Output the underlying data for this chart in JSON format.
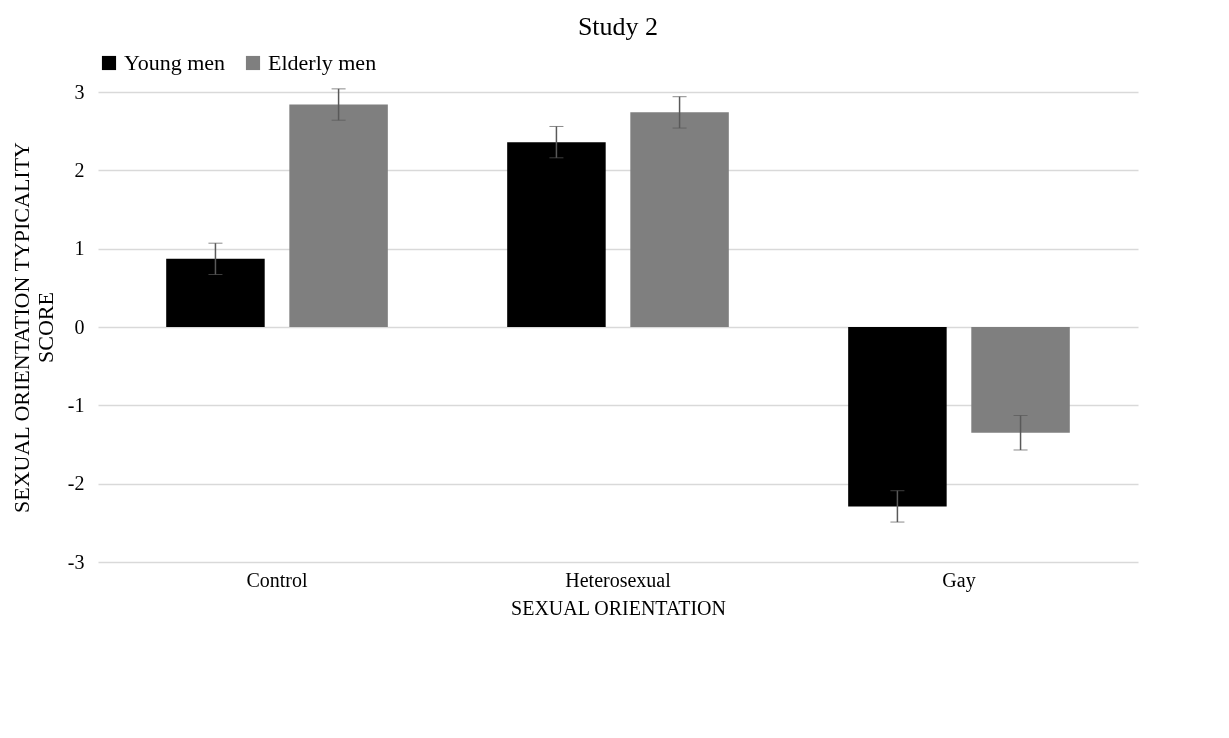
{
  "chart_data": {
    "type": "bar",
    "title": "Study 2",
    "xlabel": "SEXUAL ORIENTATION",
    "ylabel": "SEXUAL ORIENTATION TYPICALITY SCORE",
    "categories": [
      "Control",
      "Heterosexual",
      "Gay"
    ],
    "series": [
      {
        "name": "Young men",
        "color": "#000000",
        "values": [
          0.87,
          2.36,
          -2.29
        ],
        "errors": [
          0.2,
          0.2,
          0.2
        ]
      },
      {
        "name": "Elderly men",
        "color": "#7f7f7f",
        "values": [
          2.84,
          2.74,
          -1.35
        ],
        "errors": [
          0.2,
          0.2,
          0.22
        ]
      }
    ],
    "ylim": [
      -3,
      3
    ],
    "yticks": [
      -3,
      -2,
      -1,
      0,
      1,
      2,
      3
    ],
    "grid": "y",
    "legend": "top"
  }
}
